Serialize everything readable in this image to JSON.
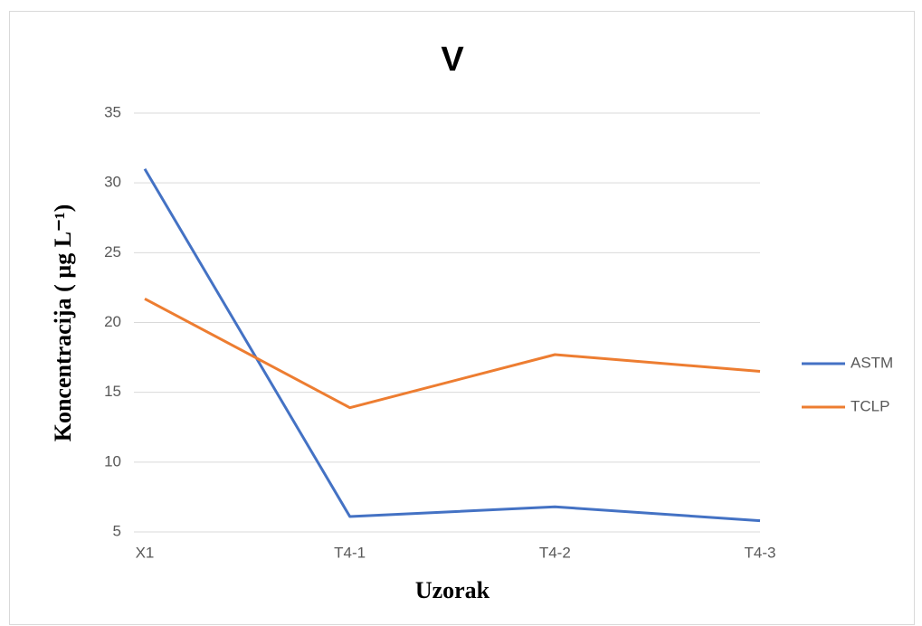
{
  "chart_data": {
    "type": "line",
    "title": "V",
    "x_label": "Uzorak",
    "y_label": "Koncentracija ( µg L⁻¹)",
    "categories": [
      "X1",
      "T4-1",
      "T4-2",
      "T4-3"
    ],
    "series": [
      {
        "name": "ASTM",
        "color": "#4472c4",
        "values": [
          31.0,
          6.1,
          6.8,
          5.8
        ]
      },
      {
        "name": "TCLP",
        "color": "#ed7d31",
        "values": [
          21.7,
          13.9,
          17.7,
          16.5
        ]
      }
    ],
    "ylim": [
      5,
      35
    ],
    "yticks": [
      5,
      10,
      15,
      20,
      25,
      30,
      35
    ],
    "grid": true,
    "legend": "right"
  }
}
